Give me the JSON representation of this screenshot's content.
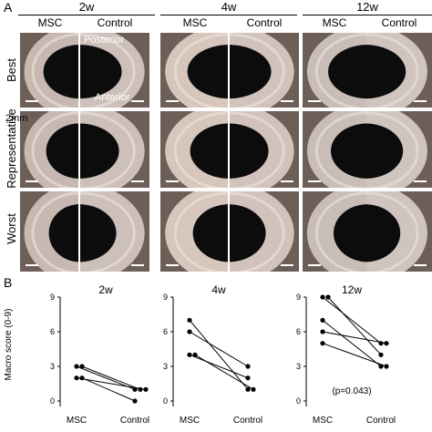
{
  "panels": {
    "a": "A",
    "b": "B"
  },
  "weeks": [
    "2w",
    "4w",
    "12w"
  ],
  "columns": {
    "msc": "MSC",
    "control": "Control"
  },
  "rows": [
    "Best",
    "Representative",
    "Worst"
  ],
  "annotations": {
    "posterior": "Posterior",
    "anterior": "Anterior",
    "scale": "2mm"
  },
  "chart_data": [
    {
      "type": "line",
      "title": "2w",
      "ylabel": "Macro score (0-9)",
      "ylim": [
        0,
        9
      ],
      "yticks": [
        0,
        3,
        6,
        9
      ],
      "categories": [
        "MSC",
        "Control"
      ],
      "series": [
        {
          "values": [
            3,
            1
          ]
        },
        {
          "values": [
            3,
            1
          ]
        },
        {
          "values": [
            2,
            1
          ]
        },
        {
          "values": [
            2,
            0
          ]
        }
      ]
    },
    {
      "type": "line",
      "title": "4w",
      "ylabel": "",
      "ylim": [
        0,
        9
      ],
      "yticks": [
        0,
        3,
        6,
        9
      ],
      "categories": [
        "MSC",
        "Control"
      ],
      "series": [
        {
          "values": [
            7,
            1
          ]
        },
        {
          "values": [
            6,
            3
          ]
        },
        {
          "values": [
            4,
            2
          ]
        },
        {
          "values": [
            4,
            1
          ]
        }
      ]
    },
    {
      "type": "line",
      "title": "12w",
      "ylabel": "",
      "ylim": [
        0,
        9
      ],
      "yticks": [
        0,
        3,
        6,
        9
      ],
      "categories": [
        "MSC",
        "Control"
      ],
      "annotation": "(p=0.043)",
      "series": [
        {
          "values": [
            9,
            5
          ]
        },
        {
          "values": [
            9,
            4
          ]
        },
        {
          "values": [
            7,
            3
          ]
        },
        {
          "values": [
            6,
            5
          ]
        },
        {
          "values": [
            5,
            3
          ]
        }
      ]
    }
  ]
}
